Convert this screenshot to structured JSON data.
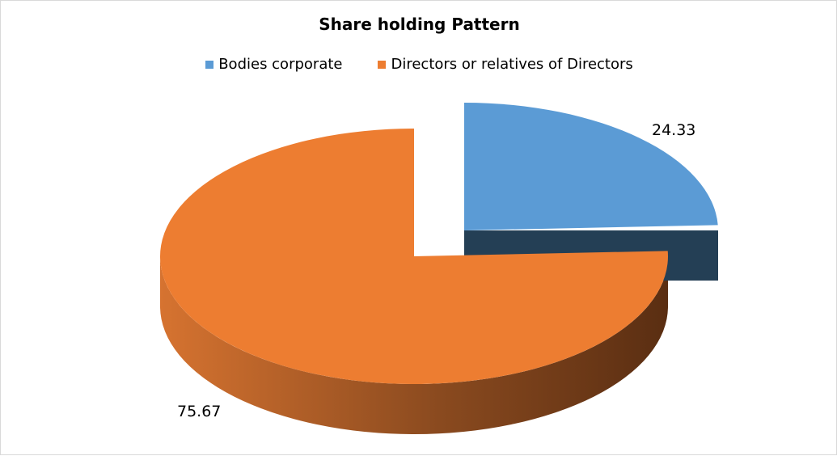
{
  "chart_data": {
    "type": "pie",
    "title": "Share holding Pattern",
    "categories": [
      "Bodies corporate",
      "Directors or relatives of Directors"
    ],
    "values": [
      24.33,
      75.67
    ],
    "data_labels": [
      "24.33",
      "75.67"
    ],
    "legend_position": "top",
    "three_d": true,
    "exploded": "Bodies corporate"
  },
  "colors": {
    "bodies_corporate": "#5b9bd5",
    "bodies_corporate_side": "#243f55",
    "directors": "#ed7d31",
    "directors_side_light": "#d67330",
    "directors_side_dark": "#5a2e12"
  }
}
